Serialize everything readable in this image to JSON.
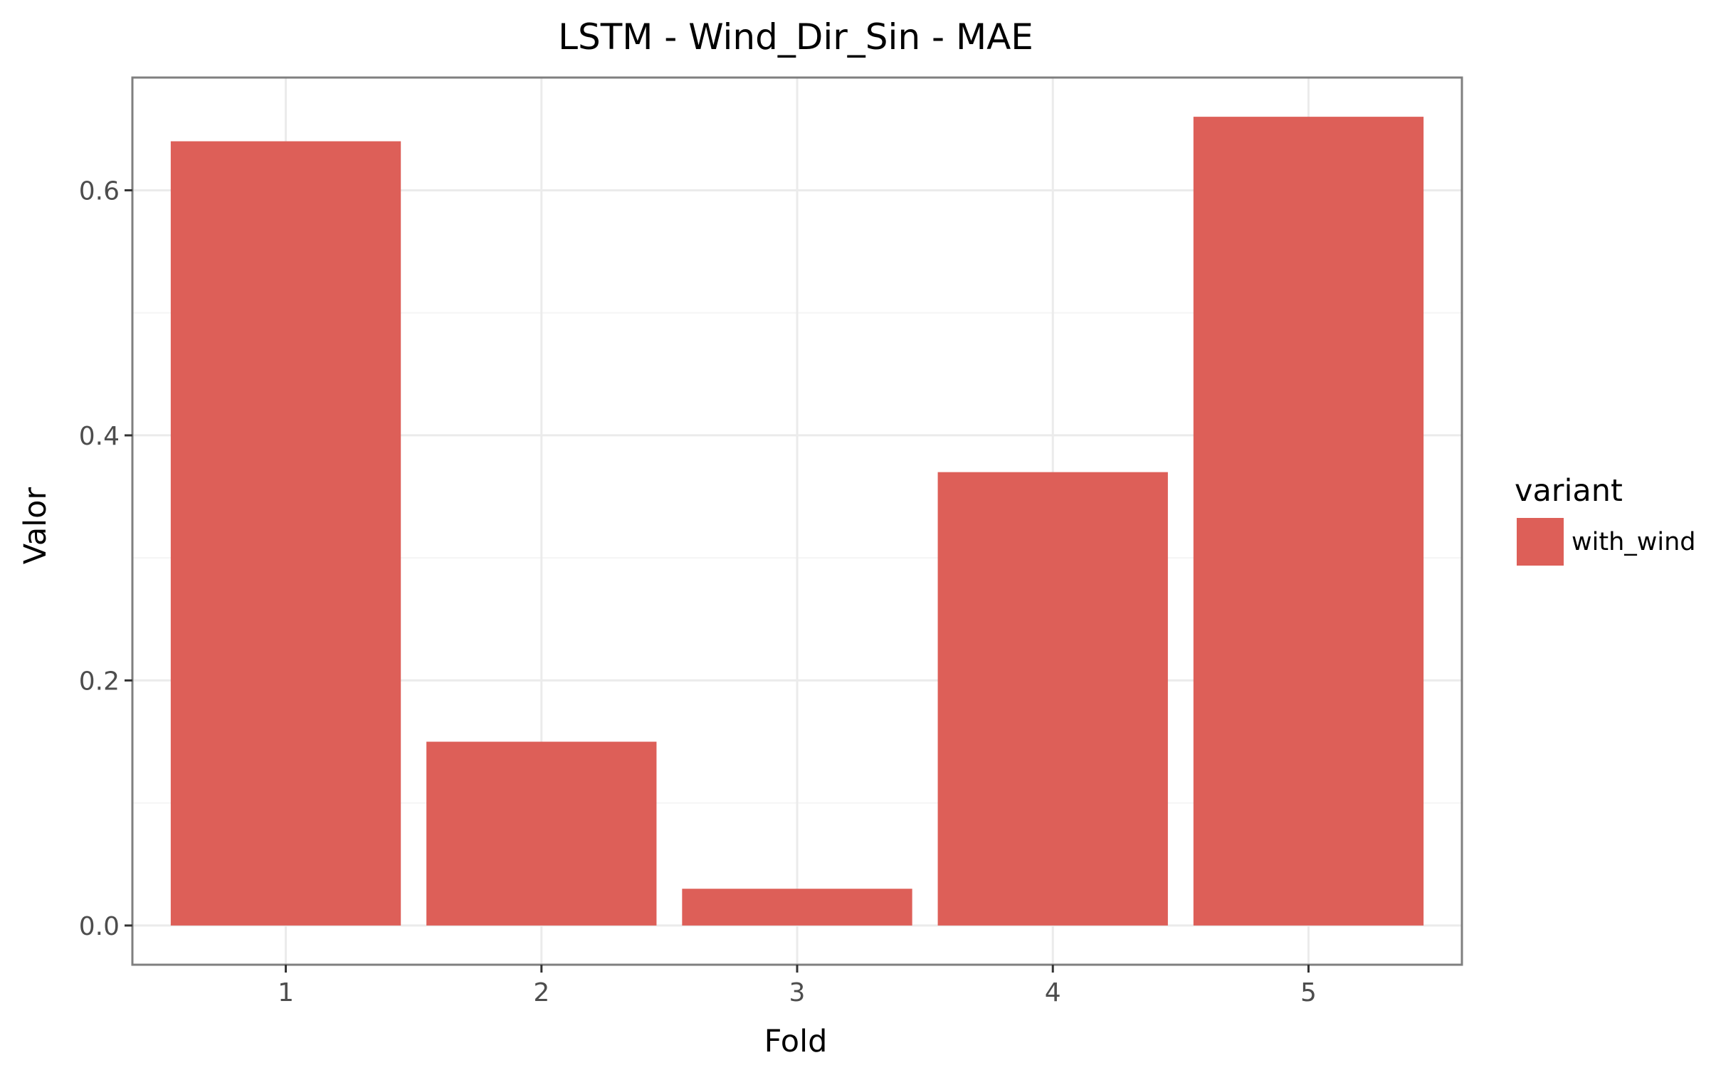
{
  "chart_data": {
    "type": "bar",
    "title": "LSTM - Wind_Dir_Sin - MAE",
    "xlabel": "Fold",
    "ylabel": "Valor",
    "categories": [
      "1",
      "2",
      "3",
      "4",
      "5"
    ],
    "series": [
      {
        "name": "with_wind",
        "color": "#dd5f58",
        "values": [
          0.64,
          0.15,
          0.03,
          0.37,
          0.66
        ]
      }
    ],
    "ylim": [
      -0.032,
      0.692
    ],
    "yticks": [
      0.0,
      0.2,
      0.4,
      0.6
    ],
    "ytick_labels": [
      "0.0",
      "0.2",
      "0.4",
      "0.6"
    ],
    "grid": true,
    "legend": {
      "title": "variant",
      "position": "right"
    },
    "colors": {
      "panel_border": "#7f7f7f",
      "grid_major": "#ebebeb",
      "grid_minor": "#f5f5f5"
    }
  }
}
